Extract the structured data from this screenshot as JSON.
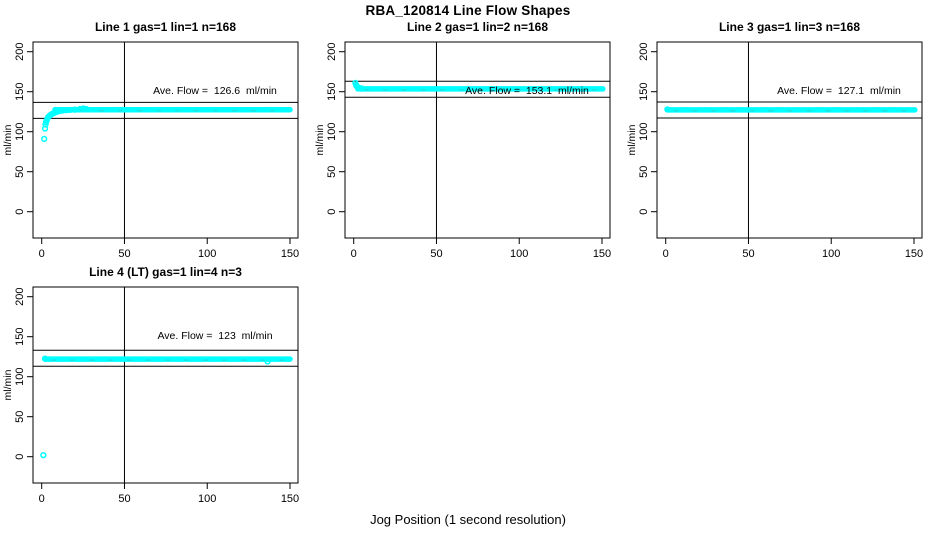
{
  "page": {
    "title": "RBA_120814  Line Flow Shapes",
    "xlabel": "Jog Position (1 second resolution)",
    "background": "#FFFFFF"
  },
  "colors": {
    "points": "#00FFFF",
    "points_dark": "#2BD3D3",
    "axis": "#000000",
    "text": "#000000"
  },
  "chart_data": [
    {
      "type": "scatter",
      "title": "Line 1 gas=1 lin=1 n=168",
      "ylabel": "ml/min",
      "ave_flow_label": "Ave. Flow =  126.6  ml/min",
      "ave_flow": 126.6,
      "n": 168,
      "xlim": [
        0,
        150
      ],
      "ylim": [
        0,
        200
      ],
      "xticks": [
        0,
        50,
        100,
        150
      ],
      "yticks": [
        0,
        50,
        100,
        150,
        200
      ],
      "vline_x": 50,
      "hlines": [
        136.6,
        116.6
      ],
      "flat": {
        "value": 127.5,
        "x_start": 8,
        "x_end": 150
      },
      "points": [
        [
          1.5,
          91
        ],
        [
          2,
          104
        ],
        [
          2.3,
          109
        ],
        [
          2.6,
          112
        ],
        [
          3,
          114
        ],
        [
          3.4,
          116
        ],
        [
          3.8,
          118
        ],
        [
          4.3,
          119
        ],
        [
          5,
          120.5
        ],
        [
          5.7,
          121.5
        ],
        [
          6.5,
          122.5
        ],
        [
          7.5,
          123.5
        ],
        [
          8.5,
          124.5
        ],
        [
          9.5,
          125.2
        ],
        [
          11,
          126
        ],
        [
          13,
          126.6
        ],
        [
          15,
          127
        ],
        [
          17,
          127.2
        ],
        [
          20,
          127.5
        ],
        [
          23,
          128.2
        ],
        [
          25,
          129
        ],
        [
          27,
          128.4
        ]
      ]
    },
    {
      "type": "scatter",
      "title": "Line 2 gas=1 lin=2 n=168",
      "ylabel": "ml/min",
      "ave_flow_label": "Ave. Flow =  153.1  ml/min",
      "ave_flow": 153.1,
      "n": 168,
      "xlim": [
        0,
        150
      ],
      "ylim": [
        0,
        200
      ],
      "xticks": [
        0,
        50,
        100,
        150
      ],
      "yticks": [
        0,
        50,
        100,
        150,
        200
      ],
      "vline_x": 50,
      "hlines": [
        163.1,
        143.1
      ],
      "flat": {
        "value": 153.5,
        "x_start": 2.5,
        "x_end": 150.5
      },
      "points": [
        [
          1,
          161
        ],
        [
          1.4,
          158.5
        ],
        [
          1.8,
          157
        ],
        [
          2.2,
          156
        ],
        [
          2.7,
          155.2
        ],
        [
          3.3,
          154.6
        ],
        [
          4,
          154.2
        ],
        [
          5,
          153.9
        ]
      ]
    },
    {
      "type": "scatter",
      "title": "Line 3 gas=1 lin=3 n=168",
      "ylabel": "ml/min",
      "ave_flow_label": "Ave. Flow =  127.1  ml/min",
      "ave_flow": 127.1,
      "n": 168,
      "xlim": [
        0,
        150
      ],
      "ylim": [
        0,
        200
      ],
      "xticks": [
        0,
        50,
        100,
        150
      ],
      "yticks": [
        0,
        50,
        100,
        150,
        200
      ],
      "vline_x": 50,
      "hlines": [
        137.1,
        117.1
      ],
      "flat": {
        "value": 127.3,
        "x_start": 1,
        "x_end": 150.5
      },
      "points": [
        [
          1,
          127.8
        ]
      ]
    },
    {
      "type": "scatter",
      "title": "Line 4 (LT) gas=1 lin=4 n=3",
      "ylabel": "ml/min",
      "ave_flow_label": "Ave. Flow =  123  ml/min",
      "ave_flow": 123,
      "n": 3,
      "xlim": [
        0,
        150
      ],
      "ylim": [
        0,
        200
      ],
      "xticks": [
        0,
        50,
        100,
        150
      ],
      "yticks": [
        0,
        50,
        100,
        150,
        200
      ],
      "vline_x": 50,
      "hlines": [
        133,
        113
      ],
      "flat": {
        "value": 122,
        "x_start": 2,
        "x_end": 150
      },
      "points": [
        [
          1,
          2
        ],
        [
          2,
          122.5
        ],
        [
          136.5,
          119
        ]
      ]
    }
  ]
}
